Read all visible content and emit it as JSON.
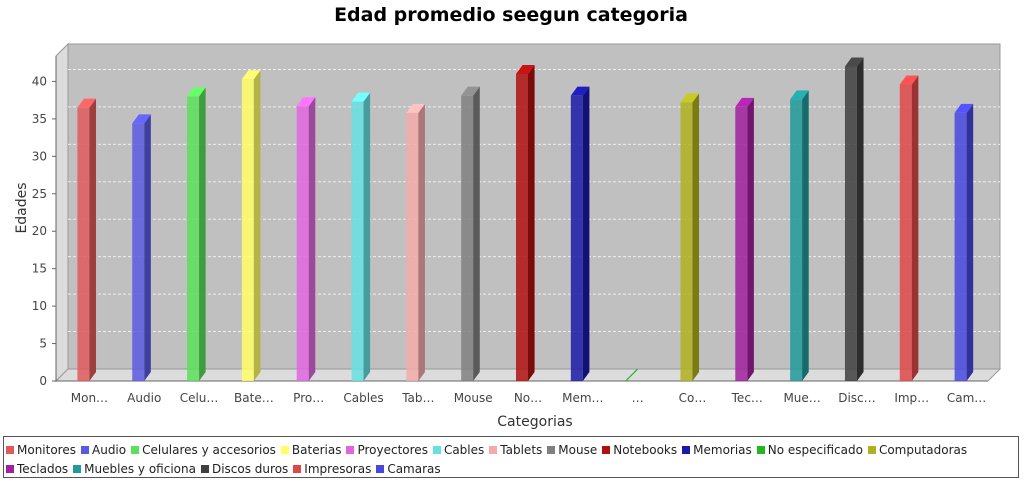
{
  "chart_data": {
    "type": "bar",
    "style": "3d",
    "title": "Edad promedio seegun categoria",
    "xlabel": "Categorias",
    "ylabel": "Edades",
    "ylim": [
      0,
      45
    ],
    "yticks": [
      0,
      5,
      10,
      15,
      20,
      25,
      30,
      35,
      40
    ],
    "grid": true,
    "legend_position": "bottom",
    "categories": [
      "Monitores",
      "Audio",
      "Celulares y accesorios",
      "Baterias",
      "Proyectores",
      "Cables",
      "Tablets",
      "Mouse",
      "Notebooks",
      "Memorias",
      "No especificado",
      "Computadoras",
      "Teclados",
      "Muebles y oficiona",
      "Discos duros",
      "Impresoras",
      "Camaras"
    ],
    "tick_labels": [
      "Mon…",
      "Audio",
      "Celu…",
      "Bate…",
      "Pro…",
      "Cables",
      "Tab…",
      "Mouse",
      "No…",
      "Mem…",
      "…",
      "Co…",
      "Tec…",
      "Mue…",
      "Disc…",
      "Imp…",
      "Cam…"
    ],
    "values": [
      36.5,
      34.4,
      38.0,
      40.3,
      36.7,
      37.3,
      35.8,
      38.1,
      41.0,
      38.1,
      0,
      37.2,
      36.6,
      37.6,
      42.0,
      39.6,
      35.8
    ],
    "colors": [
      "#e05a5a",
      "#5a5ae0",
      "#5ae05a",
      "#ffff66",
      "#e066e0",
      "#66e0e0",
      "#f4aaaa",
      "#808080",
      "#b01010",
      "#1a1aa8",
      "#22b822",
      "#b0b020",
      "#a020a0",
      "#209a9a",
      "#404040",
      "#e04848",
      "#4848e0"
    ],
    "legend": [
      "Monitores",
      "Audio",
      "Celulares y accesorios",
      "Baterias",
      "Proyectores",
      "Cables",
      "Tablets",
      "Mouse",
      "Notebooks",
      "Memorias",
      "No especificado",
      "Computadoras",
      "Teclados",
      "Muebles y oficiona",
      "Discos duros",
      "Impresoras",
      "Camaras"
    ]
  }
}
